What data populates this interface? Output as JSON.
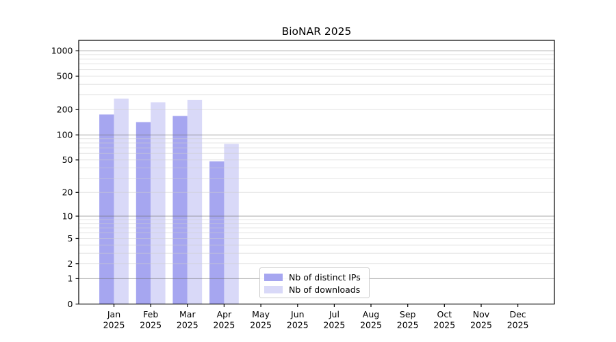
{
  "title": "BioNAR 2025",
  "legend": {
    "items": [
      {
        "label": "Nb of distinct IPs",
        "color": "#a6a6f0"
      },
      {
        "label": "Nb of downloads",
        "color": "#d9d9f8"
      }
    ]
  },
  "colors": {
    "ips_bar": "#a6a6f0",
    "downloads_bar": "#d9d9f8",
    "axis": "#000000",
    "tick_label": "#000000",
    "grid_major": "rgba(110,110,110,0.60)",
    "grid_minor": "rgba(205,205,205,0.55)",
    "legend_border": "#cccccc",
    "background": "#ffffff"
  },
  "chart_data": {
    "type": "bar",
    "title": "BioNAR 2025",
    "categories": [
      "Jan",
      "Feb",
      "Mar",
      "Apr",
      "May",
      "Jun",
      "Jul",
      "Aug",
      "Sep",
      "Oct",
      "Nov",
      "Dec"
    ],
    "year_label": "2025",
    "series": [
      {
        "name": "Nb of distinct IPs",
        "values": [
          175,
          142,
          168,
          48,
          null,
          null,
          null,
          null,
          null,
          null,
          null,
          null
        ]
      },
      {
        "name": "Nb of downloads",
        "values": [
          270,
          245,
          262,
          78,
          null,
          null,
          null,
          null,
          null,
          null,
          null,
          null
        ]
      }
    ],
    "yscale": "log1p",
    "yticks": [
      0,
      1,
      2,
      5,
      10,
      20,
      50,
      100,
      200,
      500,
      1000
    ],
    "minor_gridlines": [
      2,
      3,
      4,
      5,
      6,
      7,
      8,
      9,
      20,
      30,
      40,
      50,
      60,
      70,
      80,
      90,
      200,
      300,
      400,
      500,
      600,
      700,
      800,
      900
    ],
    "major_gridlines": [
      1,
      10,
      100,
      1000
    ],
    "ylim": [
      0,
      1300
    ],
    "grid": "horizontal, major + minor, drawn over bars",
    "legend_position": "inside lower-center"
  }
}
